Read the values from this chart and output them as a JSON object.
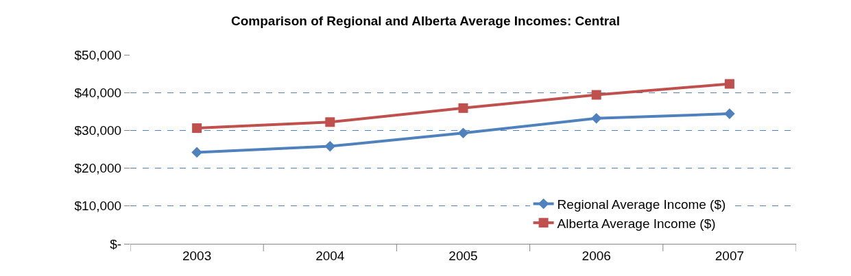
{
  "chart_data": {
    "type": "line",
    "title": "Comparison of Regional and Alberta Average Incomes: Central",
    "categories": [
      "2003",
      "2004",
      "2005",
      "2006",
      "2007"
    ],
    "series": [
      {
        "name": "Regional Average Income ($)",
        "color": "#4f81bd",
        "marker": "diamond",
        "values": [
          24200,
          25800,
          29300,
          33200,
          34400
        ]
      },
      {
        "name": "Alberta Average Income ($)",
        "color": "#c0504d",
        "marker": "square",
        "values": [
          30600,
          32200,
          35900,
          39400,
          42300
        ]
      }
    ],
    "ylim": [
      0,
      50000
    ],
    "yticks": [
      {
        "value": 0,
        "label": "$-"
      },
      {
        "value": 10000,
        "label": "$10,000"
      },
      {
        "value": 20000,
        "label": "$20,000"
      },
      {
        "value": 30000,
        "label": "$30,000"
      },
      {
        "value": 40000,
        "label": "$40,000"
      },
      {
        "value": 50000,
        "label": "$50,000"
      }
    ],
    "grid": "y",
    "legend": "bottom right",
    "line_style": "solid"
  }
}
